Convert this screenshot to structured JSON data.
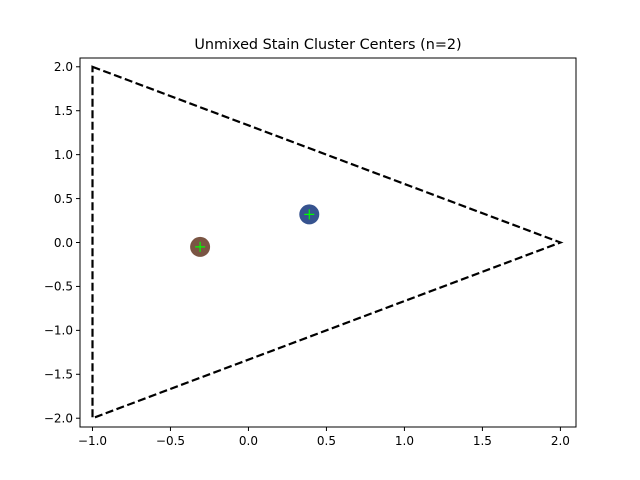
{
  "chart_data": {
    "type": "scatter",
    "title": "Unmixed Stain Cluster Centers (n=2)",
    "xlabel": "",
    "ylabel": "",
    "xlim": [
      -1.08,
      2.1
    ],
    "ylim": [
      -2.1,
      2.1
    ],
    "x_ticks": [
      -1.0,
      -0.5,
      0.0,
      0.5,
      1.0,
      1.5,
      2.0
    ],
    "x_tick_labels": [
      "−1.0",
      "−0.5",
      "0.0",
      "0.5",
      "1.0",
      "1.5",
      "2.0"
    ],
    "y_ticks": [
      2.0,
      1.5,
      1.0,
      0.5,
      0.0,
      -0.5,
      -1.0,
      -1.5,
      -2.0
    ],
    "y_tick_labels": [
      "2.0",
      "1.5",
      "1.0",
      "0.5",
      "0.0",
      "−0.5",
      "−1.0",
      "−1.5",
      "−2.0"
    ],
    "grid": false,
    "triangle": {
      "vertices": [
        [
          -1.0,
          2.0
        ],
        [
          2.0,
          0.0
        ],
        [
          -1.0,
          -2.0
        ]
      ],
      "style": "dashed",
      "color": "#000000"
    },
    "points": [
      {
        "x": -0.31,
        "y": -0.05,
        "color": "#7a5543"
      },
      {
        "x": 0.39,
        "y": 0.32,
        "color": "#36538f"
      }
    ],
    "center_marker": {
      "symbol": "+",
      "color": "#00ff00"
    }
  }
}
